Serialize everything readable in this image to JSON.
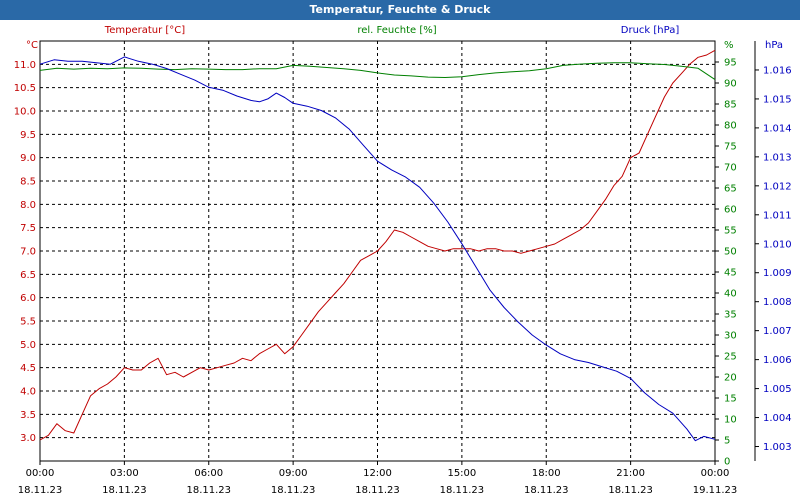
{
  "chart_data": {
    "type": "line",
    "title": "Temperatur, Feuchte & Druck",
    "x_ticks": [
      {
        "time": "00:00",
        "date": "18.11.23"
      },
      {
        "time": "03:00",
        "date": "18.11.23"
      },
      {
        "time": "06:00",
        "date": "18.11.23"
      },
      {
        "time": "09:00",
        "date": "18.11.23"
      },
      {
        "time": "12:00",
        "date": "18.11.23"
      },
      {
        "time": "15:00",
        "date": "18.11.23"
      },
      {
        "time": "18:00",
        "date": "18.11.23"
      },
      {
        "time": "21:00",
        "date": "18.11.23"
      },
      {
        "time": "00:00",
        "date": "19.11.23"
      }
    ],
    "x_range_hours": [
      0,
      24
    ],
    "axes": {
      "temperature": {
        "label": "Temperatur [°C]",
        "unit": "°C",
        "min": 2.5,
        "max": 11.5,
        "ticks": [
          "3.0",
          "3.5",
          "4.0",
          "4.5",
          "5.0",
          "5.5",
          "6.0",
          "6.5",
          "7.0",
          "7.5",
          "8.0",
          "8.5",
          "9.0",
          "9.5",
          "10.0",
          "10.5",
          "11.0"
        ],
        "color": "#c00000"
      },
      "humidity": {
        "label": "rel. Feuchte [%]",
        "unit": "%",
        "min": 0,
        "max": 100,
        "ticks": [
          "0",
          "5",
          "10",
          "15",
          "20",
          "25",
          "30",
          "35",
          "40",
          "45",
          "50",
          "55",
          "60",
          "65",
          "70",
          "75",
          "80",
          "85",
          "90",
          "95"
        ],
        "color": "#008000"
      },
      "pressure": {
        "label": "Druck [hPa]",
        "unit": "hPa",
        "min": 1002.5,
        "max": 1017.0,
        "ticks": [
          "1.003",
          "1.004",
          "1.005",
          "1.006",
          "1.007",
          "1.008",
          "1.009",
          "1.010",
          "1.011",
          "1.012",
          "1.013",
          "1.014",
          "1.015",
          "1.016"
        ],
        "color": "#0000c0"
      }
    },
    "series": [
      {
        "name": "Temperatur",
        "axis": "temperature",
        "color": "#c00000",
        "x": [
          0,
          0.3,
          0.6,
          0.9,
          1.2,
          1.5,
          1.8,
          2.1,
          2.4,
          2.7,
          3.0,
          3.3,
          3.6,
          3.9,
          4.2,
          4.5,
          4.8,
          5.1,
          5.4,
          5.7,
          6.0,
          6.3,
          6.6,
          6.9,
          7.2,
          7.5,
          7.8,
          8.1,
          8.4,
          8.7,
          9.0,
          9.3,
          9.6,
          9.9,
          10.2,
          10.5,
          10.8,
          11.1,
          11.4,
          11.7,
          12.0,
          12.3,
          12.6,
          12.9,
          13.2,
          13.5,
          13.8,
          14.1,
          14.4,
          14.7,
          15.0,
          15.3,
          15.6,
          15.9,
          16.2,
          16.5,
          16.8,
          17.1,
          17.4,
          17.7,
          18.0,
          18.3,
          18.6,
          18.9,
          19.2,
          19.5,
          19.8,
          20.1,
          20.4,
          20.7,
          21.0,
          21.3,
          21.6,
          21.9,
          22.2,
          22.5,
          22.8,
          23.1,
          23.4,
          23.7,
          24.0
        ],
        "values": [
          2.95,
          3.05,
          3.3,
          3.15,
          3.1,
          3.5,
          3.9,
          4.05,
          4.15,
          4.3,
          4.5,
          4.45,
          4.45,
          4.6,
          4.7,
          4.35,
          4.4,
          4.3,
          4.4,
          4.5,
          4.45,
          4.5,
          4.55,
          4.6,
          4.7,
          4.65,
          4.8,
          4.9,
          5.0,
          4.8,
          4.95,
          5.2,
          5.45,
          5.7,
          5.9,
          6.1,
          6.3,
          6.55,
          6.8,
          6.9,
          7.0,
          7.2,
          7.45,
          7.4,
          7.3,
          7.2,
          7.1,
          7.05,
          7.0,
          7.05,
          7.05,
          7.05,
          7.0,
          7.05,
          7.05,
          7.0,
          7.0,
          6.95,
          7.0,
          7.05,
          7.1,
          7.15,
          7.25,
          7.35,
          7.45,
          7.6,
          7.85,
          8.1,
          8.4,
          8.6,
          9.0,
          9.1,
          9.5,
          9.9,
          10.3,
          10.6,
          10.8,
          11.0,
          11.15,
          11.2,
          11.3
        ]
      },
      {
        "name": "rel. Feuchte",
        "axis": "humidity",
        "color": "#008000",
        "x": [
          0,
          0.6,
          1.2,
          1.8,
          2.4,
          3.0,
          3.6,
          4.2,
          4.8,
          5.4,
          6.0,
          6.6,
          7.2,
          7.8,
          8.4,
          9.0,
          9.6,
          10.2,
          10.8,
          11.4,
          12.0,
          12.6,
          13.2,
          13.8,
          14.4,
          15.0,
          15.6,
          16.2,
          16.8,
          17.4,
          18.0,
          18.6,
          19.2,
          19.8,
          20.4,
          21.0,
          21.6,
          22.2,
          22.8,
          23.4,
          24.0
        ],
        "values": [
          93,
          93.5,
          93.3,
          93.5,
          93.4,
          93.6,
          93.5,
          93.3,
          93.2,
          93.4,
          93.3,
          93.2,
          93.2,
          93.4,
          93.4,
          94.2,
          94.0,
          93.7,
          93.4,
          93.0,
          92.4,
          91.9,
          91.7,
          91.4,
          91.3,
          91.5,
          92.0,
          92.4,
          92.7,
          92.9,
          93.4,
          94.2,
          94.5,
          94.7,
          94.8,
          94.8,
          94.6,
          94.4,
          94.0,
          93.5,
          90.8
        ]
      },
      {
        "name": "Druck",
        "axis": "pressure",
        "color": "#0000c0",
        "x": [
          0,
          0.5,
          1.0,
          1.5,
          2.0,
          2.5,
          3.0,
          3.5,
          4.0,
          4.5,
          5.0,
          5.5,
          6.0,
          6.5,
          7.0,
          7.5,
          7.8,
          8.1,
          8.4,
          8.7,
          9.0,
          9.5,
          10.0,
          10.5,
          11.0,
          11.5,
          12.0,
          12.5,
          13.0,
          13.5,
          14.0,
          14.5,
          15.0,
          15.5,
          16.0,
          16.5,
          17.0,
          17.5,
          18.0,
          18.5,
          19.0,
          19.5,
          20.0,
          20.5,
          21.0,
          21.5,
          22.0,
          22.5,
          23.0,
          23.3,
          23.6,
          24.0
        ],
        "values": [
          1016.2,
          1016.35,
          1016.3,
          1016.3,
          1016.25,
          1016.2,
          1016.45,
          1016.3,
          1016.2,
          1016.05,
          1015.85,
          1015.65,
          1015.4,
          1015.3,
          1015.1,
          1014.95,
          1014.9,
          1015.0,
          1015.2,
          1015.05,
          1014.85,
          1014.75,
          1014.6,
          1014.35,
          1013.95,
          1013.4,
          1012.85,
          1012.55,
          1012.3,
          1011.95,
          1011.4,
          1010.75,
          1010.0,
          1009.2,
          1008.4,
          1007.8,
          1007.3,
          1006.85,
          1006.5,
          1006.2,
          1006.0,
          1005.9,
          1005.75,
          1005.6,
          1005.35,
          1004.85,
          1004.45,
          1004.15,
          1003.6,
          1003.2,
          1003.35,
          1003.25
        ]
      }
    ],
    "grid": true
  }
}
